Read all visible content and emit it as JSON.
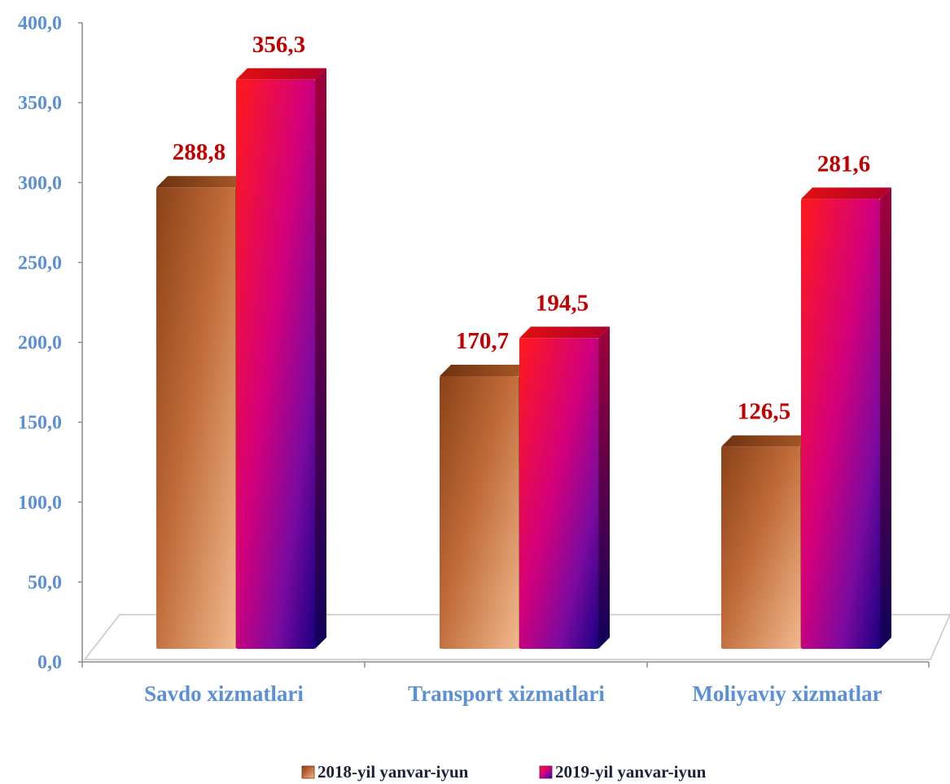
{
  "chart_data": {
    "type": "bar",
    "title": "",
    "xlabel": "",
    "ylabel": "",
    "categories": [
      "Savdo xizmatlari",
      "Transport xizmatlari",
      "Moliyaviy xizmatlar"
    ],
    "series": [
      {
        "name": "2018-yil yanvar-iyun",
        "values": [
          288.8,
          170.7,
          126.5
        ],
        "labels": [
          "288,8",
          "170,7",
          "126,5"
        ],
        "color": "#b5612d"
      },
      {
        "name": "2019-yil yanvar-iyun",
        "values": [
          356.3,
          194.5,
          281.6
        ],
        "labels": [
          "356,3",
          "194,5",
          "281,6"
        ],
        "color": "#e0005a"
      }
    ],
    "ylim": [
      0,
      400
    ],
    "yticks": [
      "0,0",
      "50,0",
      "100,0",
      "150,0",
      "200,0",
      "250,0",
      "300,0",
      "350,0",
      "400,0"
    ],
    "grid": false,
    "legend_position": "bottom"
  }
}
